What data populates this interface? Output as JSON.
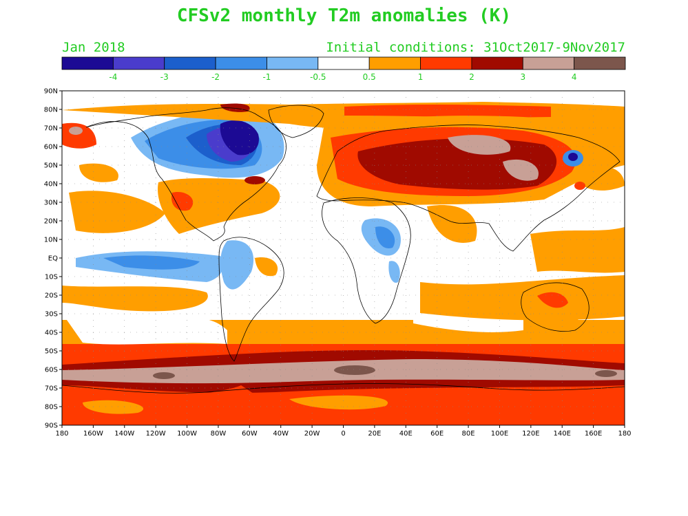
{
  "header": {
    "title": "CFSv2 monthly T2m anomalies (K)",
    "valid_month": "Jan 2018",
    "initial_conditions": "Initial conditions: 31Oct2017-9Nov2017"
  },
  "colorbar": {
    "colors": [
      "#1c0a94",
      "#4a3ccc",
      "#1c5fcc",
      "#3c8ee8",
      "#78b8f4",
      "#ffffff",
      "#ff9e00",
      "#ff3a00",
      "#a00a00",
      "#c8a096",
      "#7c564c"
    ],
    "labels": [
      "-4",
      "-3",
      "-2",
      "-1",
      "-0.5",
      "0.5",
      "1",
      "2",
      "3",
      "4"
    ]
  },
  "axes": {
    "lat_labels": [
      "90N",
      "80N",
      "70N",
      "60N",
      "50N",
      "40N",
      "30N",
      "20N",
      "10N",
      "EQ",
      "10S",
      "20S",
      "30S",
      "40S",
      "50S",
      "60S",
      "70S",
      "80S",
      "90S"
    ],
    "lon_labels": [
      "180",
      "160W",
      "140W",
      "120W",
      "100W",
      "80W",
      "60W",
      "40W",
      "20W",
      "0",
      "20E",
      "40E",
      "60E",
      "80E",
      "100E",
      "120E",
      "140E",
      "160E",
      "180"
    ]
  },
  "anomaly_colors": {
    "deep_cold": "#1c0a94",
    "very_cold": "#4a3ccc",
    "cold": "#1c5fcc",
    "cool": "#3c8ee8",
    "slightly_cool": "#78b8f4",
    "neutral": "#ffffff",
    "warm": "#ff9e00",
    "hot": "#ff3a00",
    "very_hot": "#a00a00",
    "extreme": "#c8a096",
    "max": "#7c564c"
  }
}
